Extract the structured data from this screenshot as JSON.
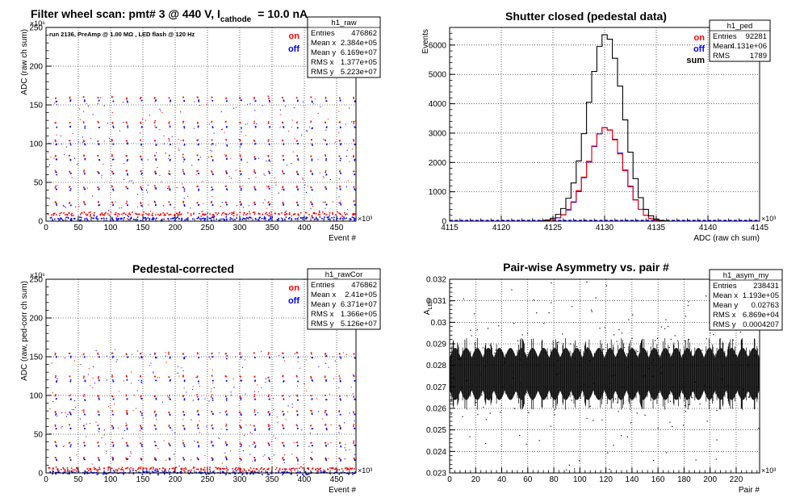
{
  "chart_data": [
    {
      "type": "scatter",
      "title": "Filter wheel scan: pmt#   3 @   440 V, I",
      "title_sub": "cathode",
      "title_tail": "= 10.0 nA",
      "annotation": "run 2136, PreAmp @ 1.00 MΩ , LED flash @  120 Hz",
      "xlabel": "Event #",
      "ylabel": "ADC (raw ch sum)",
      "x_exponent": "×10³",
      "y_exponent": "×10⁶",
      "xlim": [
        0,
        480
      ],
      "ylim": [
        0,
        250
      ],
      "x_ticks": [
        0,
        50,
        100,
        150,
        200,
        250,
        300,
        350,
        400,
        450
      ],
      "y_ticks": [
        0,
        50,
        100,
        150,
        200,
        250
      ],
      "grid": true,
      "legend": {
        "on": "on",
        "off": "off",
        "placement": "top-right"
      },
      "stats": {
        "name": "h1_raw",
        "rows": [
          [
            "Entries",
            "476862"
          ],
          [
            "Mean x",
            "2.384e+05"
          ],
          [
            "Mean y",
            "6.169e+07"
          ],
          [
            "RMS x",
            "1.377e+05"
          ],
          [
            "RMS y",
            "5.223e+07"
          ]
        ]
      },
      "series": [
        {
          "name": "on",
          "color": "#ff0000",
          "levels": [
            160,
            128,
            105,
            85,
            65,
            45,
            25,
            10
          ]
        },
        {
          "name": "off",
          "color": "#0000ff",
          "levels": [
            156,
            122,
            100,
            80,
            62,
            42,
            22,
            4
          ]
        }
      ]
    },
    {
      "type": "line",
      "title": "Shutter closed (pedestal data)",
      "xlabel": "ADC (raw ch sum)",
      "ylabel": "Events",
      "x_exponent": "×10³",
      "xlim": [
        4115,
        4145
      ],
      "ylim": [
        0,
        6600
      ],
      "x_ticks": [
        4115,
        4120,
        4125,
        4130,
        4135,
        4140,
        4145
      ],
      "y_ticks": [
        0,
        1000,
        2000,
        3000,
        4000,
        5000,
        6000
      ],
      "grid": true,
      "legend": {
        "on": "on",
        "off": "off",
        "sum": "sum",
        "placement": "top-right"
      },
      "stats": {
        "name": "h1_ped",
        "rows": [
          [
            "Entries",
            "92281"
          ],
          [
            "Mean",
            "4.131e+06"
          ],
          [
            "RMS",
            "1789"
          ]
        ]
      },
      "x": [
        4124.0,
        4124.5,
        4125.0,
        4125.5,
        4126.0,
        4126.5,
        4127.0,
        4127.5,
        4128.0,
        4128.5,
        4129.0,
        4129.5,
        4130.0,
        4130.5,
        4131.0,
        4131.5,
        4132.0,
        4132.5,
        4133.0,
        4133.5,
        4134.0,
        4134.5,
        4135.0,
        4135.5,
        4136.0
      ],
      "series": [
        {
          "name": "sum",
          "color": "#000000",
          "values": [
            10,
            40,
            100,
            230,
            430,
            780,
            1300,
            2050,
            2980,
            4050,
            5100,
            5950,
            6350,
            6200,
            5550,
            4600,
            3450,
            2350,
            1450,
            800,
            400,
            180,
            70,
            25,
            8
          ]
        },
        {
          "name": "on",
          "color": "#ff0000",
          "values": [
            5,
            20,
            50,
            120,
            220,
            400,
            660,
            1040,
            1500,
            2040,
            2560,
            2980,
            3180,
            3100,
            2770,
            2290,
            1720,
            1170,
            720,
            400,
            200,
            90,
            35,
            12,
            4
          ]
        },
        {
          "name": "off",
          "color": "#0000ff",
          "values": [
            5,
            20,
            50,
            110,
            210,
            380,
            640,
            1010,
            1480,
            2010,
            2540,
            2970,
            3190,
            3110,
            2790,
            2320,
            1740,
            1190,
            730,
            400,
            200,
            90,
            35,
            12,
            4
          ]
        }
      ]
    },
    {
      "type": "scatter",
      "title": "Pedestal-corrected",
      "xlabel": "Event #",
      "ylabel": "ADC (raw, ped-corr ch sum)",
      "x_exponent": "×10³",
      "y_exponent": "×10⁶",
      "xlim": [
        0,
        480
      ],
      "ylim": [
        0,
        250
      ],
      "x_ticks": [
        0,
        50,
        100,
        150,
        200,
        250,
        300,
        350,
        400,
        450
      ],
      "y_ticks": [
        0,
        50,
        100,
        150,
        200,
        250
      ],
      "grid": true,
      "legend": {
        "on": "on",
        "off": "off",
        "placement": "top-right"
      },
      "stats": {
        "name": "h1_rawCor",
        "rows": [
          [
            "Entries",
            "476862"
          ],
          [
            "Mean x",
            "2.41e+05"
          ],
          [
            "Mean y",
            "6.371e+07"
          ],
          [
            "RMS x",
            "1.366e+05"
          ],
          [
            "RMS y",
            "5.126e+07"
          ]
        ]
      },
      "series": [
        {
          "name": "on",
          "color": "#ff0000",
          "levels": [
            155,
            125,
            100,
            80,
            62,
            40,
            20,
            6
          ]
        },
        {
          "name": "off",
          "color": "#0000ff",
          "levels": [
            150,
            120,
            96,
            76,
            58,
            36,
            18,
            1
          ]
        }
      ]
    },
    {
      "type": "scatter",
      "title": "Pair-wise Asymmetry vs. pair #",
      "xlabel": "Pair #",
      "ylabel": "A",
      "ylabel_sub": "LED",
      "x_exponent": "×10³",
      "xlim": [
        0,
        238
      ],
      "ylim": [
        0.023,
        0.032
      ],
      "x_ticks": [
        0,
        20,
        40,
        60,
        80,
        100,
        120,
        140,
        160,
        180,
        200,
        220
      ],
      "y_ticks": [
        0.023,
        0.024,
        0.025,
        0.026,
        0.027,
        0.028,
        0.029,
        0.03,
        0.031,
        0.032
      ],
      "grid": true,
      "stats": {
        "name": "h1_asym_my",
        "rows": [
          [
            "Entries",
            "238431"
          ],
          [
            "Mean x",
            "1.193e+05"
          ],
          [
            "Mean y",
            "0.02763"
          ],
          [
            "RMS x",
            "6.869e+04"
          ],
          [
            "RMS y",
            "0.0004207"
          ]
        ]
      },
      "series": [
        {
          "name": "",
          "color": "#000000",
          "center": 0.0276,
          "rms": 0.00042
        }
      ]
    }
  ]
}
